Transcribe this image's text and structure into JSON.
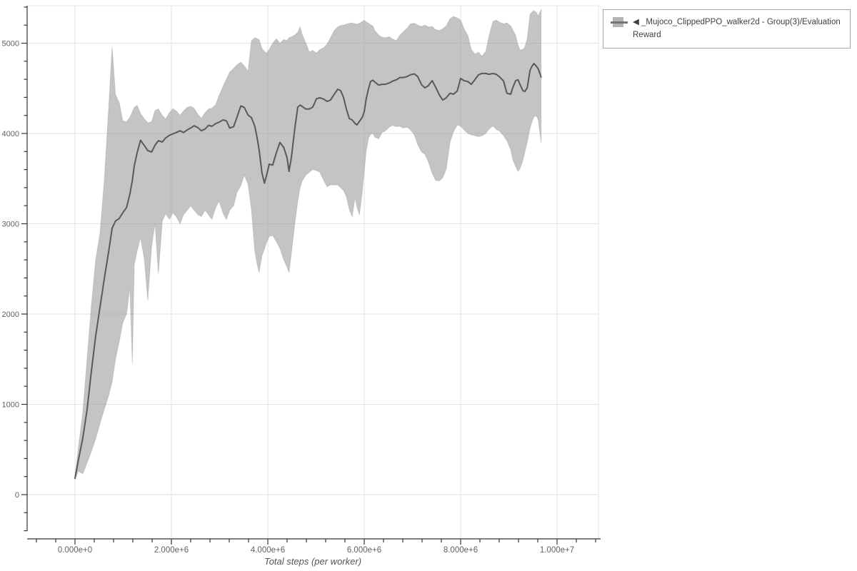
{
  "colors": {
    "background": "#ffffff",
    "band_fill": "rgba(160,160,160,0.62)",
    "band_edge": "rgba(150,150,150,0.35)",
    "line": "#595959",
    "grid": "#e2e2e2",
    "plot_border": "#e3e3e3",
    "spine": "#333333",
    "tick_label": "#606060",
    "axis_title": "#555555",
    "legend_border": "#a8a8a8",
    "legend_text": "#3f3f3f",
    "legend_marker_fill": "#b3b3b3",
    "legend_marker_line": "#757575"
  },
  "legend": {
    "items": [
      {
        "label": "◀ _Mujoco_ClippedPPO_walker2d - Group(3)/Evaluation Reward"
      }
    ]
  },
  "chart_data": {
    "type": "line",
    "title": "",
    "xlabel": "Total steps (per worker)",
    "ylabel": "",
    "grid": true,
    "legend_position": "outside-top-right",
    "xlim_millions": [
      -0.99,
      10.86
    ],
    "ylim": [
      -490,
      5415
    ],
    "x_tick_values_millions": [
      0,
      2,
      4,
      6,
      8,
      10
    ],
    "x_tick_labels": [
      "0.000e+0",
      "2.000e+6",
      "4.000e+6",
      "6.000e+6",
      "8.000e+6",
      "1.000e+7"
    ],
    "x_minor_step_millions": 0.4,
    "x_minor_range_millions": [
      -0.8,
      10.8
    ],
    "y_tick_values": [
      0,
      1000,
      2000,
      3000,
      4000,
      5000
    ],
    "y_tick_labels": [
      "0",
      "1000",
      "2000",
      "3000",
      "4000",
      "5000"
    ],
    "y_minor_step": 200,
    "y_minor_range": [
      -400,
      5400
    ],
    "series": [
      {
        "name": "◀ _Mujoco_ClippedPPO_walker2d - Group(3)/Evaluation Reward",
        "type": "line-with-band",
        "x_millions": [
          0.0,
          0.07,
          0.16,
          0.25,
          0.34,
          0.43,
          0.52,
          0.61,
          0.7,
          0.77,
          0.84,
          0.92,
          0.99,
          1.07,
          1.14,
          1.19,
          1.23,
          1.29,
          1.36,
          1.44,
          1.51,
          1.59,
          1.66,
          1.73,
          1.81,
          1.88,
          1.96,
          2.03,
          2.1,
          2.18,
          2.25,
          2.33,
          2.4,
          2.47,
          2.55,
          2.62,
          2.7,
          2.77,
          2.84,
          2.92,
          2.99,
          3.07,
          3.14,
          3.21,
          3.29,
          3.36,
          3.44,
          3.51,
          3.59,
          3.66,
          3.73,
          3.78,
          3.82,
          3.88,
          3.93,
          3.97,
          4.03,
          4.1,
          4.18,
          4.25,
          4.33,
          4.4,
          4.44,
          4.49,
          4.56,
          4.62,
          4.67,
          4.71,
          4.79,
          4.86,
          4.93,
          5.01,
          5.08,
          5.16,
          5.23,
          5.3,
          5.38,
          5.45,
          5.51,
          5.57,
          5.63,
          5.69,
          5.75,
          5.81,
          5.85,
          5.9,
          5.96,
          6.0,
          6.04,
          6.09,
          6.13,
          6.18,
          6.22,
          6.3,
          6.37,
          6.44,
          6.52,
          6.59,
          6.67,
          6.74,
          6.81,
          6.89,
          6.96,
          7.04,
          7.11,
          7.19,
          7.26,
          7.33,
          7.41,
          7.48,
          7.56,
          7.63,
          7.7,
          7.78,
          7.85,
          7.93,
          8.0,
          8.07,
          8.15,
          8.22,
          8.3,
          8.37,
          8.44,
          8.52,
          8.59,
          8.67,
          8.74,
          8.81,
          8.89,
          8.96,
          9.04,
          9.08,
          9.14,
          9.19,
          9.23,
          9.29,
          9.33,
          9.38,
          9.44,
          9.48,
          9.52,
          9.57,
          9.61,
          9.67
        ],
        "mean": [
          180,
          380,
          620,
          940,
          1370,
          1760,
          2080,
          2400,
          2700,
          2950,
          3030,
          3060,
          3120,
          3180,
          3330,
          3480,
          3640,
          3790,
          3925,
          3865,
          3810,
          3795,
          3870,
          3920,
          3905,
          3950,
          3980,
          3995,
          4010,
          4030,
          4010,
          4040,
          4060,
          4085,
          4065,
          4030,
          4050,
          4090,
          4080,
          4110,
          4125,
          4150,
          4140,
          4060,
          4075,
          4180,
          4305,
          4290,
          4205,
          4175,
          4080,
          3950,
          3820,
          3560,
          3450,
          3530,
          3660,
          3650,
          3790,
          3900,
          3845,
          3730,
          3580,
          3740,
          4055,
          4290,
          4315,
          4300,
          4270,
          4270,
          4290,
          4385,
          4395,
          4380,
          4355,
          4370,
          4435,
          4490,
          4475,
          4400,
          4270,
          4165,
          4150,
          4110,
          4095,
          4135,
          4180,
          4240,
          4380,
          4500,
          4575,
          4590,
          4570,
          4535,
          4545,
          4545,
          4560,
          4580,
          4595,
          4620,
          4620,
          4630,
          4650,
          4660,
          4630,
          4540,
          4505,
          4530,
          4585,
          4515,
          4425,
          4370,
          4395,
          4445,
          4435,
          4470,
          4610,
          4585,
          4575,
          4545,
          4600,
          4650,
          4665,
          4665,
          4655,
          4665,
          4655,
          4625,
          4580,
          4445,
          4435,
          4505,
          4585,
          4595,
          4545,
          4475,
          4465,
          4505,
          4700,
          4745,
          4775,
          4745,
          4715,
          4625
        ],
        "band_lower": [
          170,
          260,
          230,
          350,
          480,
          620,
          790,
          950,
          1100,
          1250,
          1500,
          1700,
          1900,
          2000,
          2300,
          1450,
          2550,
          2700,
          2850,
          2600,
          2150,
          2750,
          3000,
          2450,
          3030,
          3110,
          3050,
          3120,
          3080,
          3000,
          3100,
          3150,
          3200,
          3150,
          3100,
          3080,
          3150,
          3100,
          3050,
          3180,
          3250,
          3120,
          3050,
          3150,
          3200,
          3350,
          3420,
          3540,
          3440,
          3150,
          2700,
          2550,
          2460,
          2650,
          2720,
          2790,
          2860,
          2870,
          2800,
          2730,
          2600,
          2520,
          2460,
          2680,
          3000,
          3250,
          3400,
          3470,
          3540,
          3570,
          3600,
          3590,
          3570,
          3480,
          3410,
          3430,
          3430,
          3430,
          3400,
          3370,
          3300,
          3160,
          3080,
          3290,
          3180,
          3100,
          3360,
          3580,
          3800,
          3950,
          3990,
          4000,
          3960,
          3940,
          4010,
          4030,
          4070,
          4090,
          4075,
          4080,
          4060,
          4070,
          4040,
          3985,
          3875,
          3795,
          3770,
          3685,
          3560,
          3480,
          3475,
          3510,
          3605,
          3900,
          4020,
          4095,
          4080,
          4040,
          4000,
          3985,
          3975,
          3965,
          3975,
          4000,
          4050,
          4085,
          4045,
          4025,
          3975,
          3920,
          3820,
          3715,
          3635,
          3580,
          3610,
          3700,
          3790,
          3900,
          4060,
          4130,
          4185,
          4195,
          4150,
          3895
        ],
        "band_upper": [
          200,
          520,
          900,
          1500,
          2100,
          2600,
          2900,
          3500,
          4300,
          4960,
          4430,
          4340,
          4140,
          4130,
          4180,
          4240,
          4290,
          4310,
          4220,
          4160,
          4120,
          4130,
          4255,
          4270,
          4200,
          4160,
          4230,
          4275,
          4250,
          4200,
          4250,
          4290,
          4300,
          4280,
          4210,
          4170,
          4230,
          4270,
          4280,
          4320,
          4420,
          4520,
          4600,
          4680,
          4720,
          4760,
          4790,
          4750,
          4690,
          5030,
          5060,
          5050,
          5040,
          4940,
          4910,
          4890,
          4930,
          5000,
          5050,
          5000,
          5040,
          5030,
          5060,
          5070,
          5090,
          5120,
          5180,
          5100,
          5000,
          4900,
          4920,
          4890,
          4930,
          4950,
          4990,
          5060,
          5140,
          5180,
          5195,
          5200,
          5210,
          5220,
          5225,
          5215,
          5210,
          5220,
          5240,
          5255,
          5235,
          5220,
          5205,
          5190,
          5140,
          5090,
          5065,
          5060,
          5070,
          5045,
          5030,
          5090,
          5125,
          5165,
          5215,
          5220,
          5200,
          5185,
          5200,
          5180,
          5185,
          5150,
          5140,
          5160,
          5190,
          5270,
          5295,
          5280,
          5255,
          5160,
          5085,
          4930,
          4880,
          4900,
          4855,
          4905,
          5080,
          5240,
          5255,
          5230,
          5215,
          5225,
          5190,
          5150,
          5085,
          4980,
          4925,
          4930,
          4955,
          5050,
          5320,
          5345,
          5360,
          5340,
          5300,
          5375
        ]
      }
    ]
  }
}
